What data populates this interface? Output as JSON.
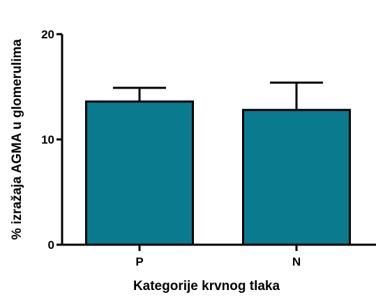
{
  "chart_data": {
    "type": "bar",
    "xlabel": "Kategorije krvnog tlaka",
    "ylabel": "% izražaja AGMA u glomerulima",
    "categories": [
      "P",
      "N"
    ],
    "values": [
      13.6,
      12.8
    ],
    "error_upper": [
      1.3,
      2.6
    ],
    "ylim": [
      0,
      20
    ],
    "yticks": [
      0,
      10,
      20
    ],
    "ytick_labels": [
      "0",
      "10",
      "20"
    ],
    "grid": false,
    "bar_color": "#0a7a8e",
    "edge_color": "#000000"
  }
}
